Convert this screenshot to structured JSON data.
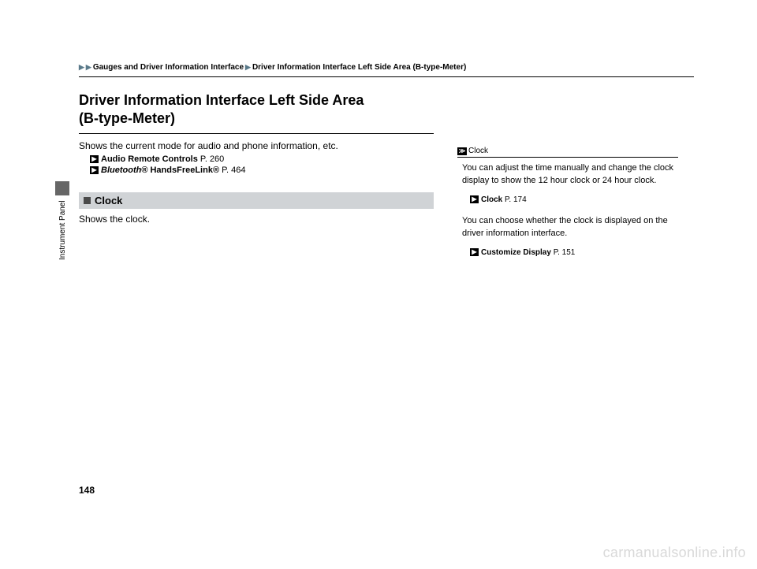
{
  "breadcrumb": {
    "level1": "Gauges and Driver Information Interface",
    "level2": "Driver Information Interface Left Side Area (B-type-Meter)"
  },
  "title_line1": "Driver Information Interface Left Side Area",
  "title_line2": "(B-type-Meter)",
  "intro": "Shows the current mode for audio and phone information, etc.",
  "refs": [
    {
      "label": "Audio Remote Controls",
      "page": "P. 260",
      "style": "bold"
    },
    {
      "label": "Bluetooth",
      "suffix": "® HandsFreeLink®",
      "page": "P. 464",
      "style": "italic"
    }
  ],
  "section": {
    "heading": "Clock",
    "body": "Shows the clock."
  },
  "side_tab": "Instrument Panel",
  "right": {
    "heading": "Clock",
    "body1": "You can adjust the time manually and change the clock display to show the 12 hour clock or 24 hour clock.",
    "ref1_label": "Clock",
    "ref1_page": "P. 174",
    "body2": "You can choose whether the clock is displayed on the driver information interface.",
    "ref2_label": "Customize Display",
    "ref2_page": "P. 151"
  },
  "page_number": "148",
  "watermark": "carmanualsonline.info"
}
